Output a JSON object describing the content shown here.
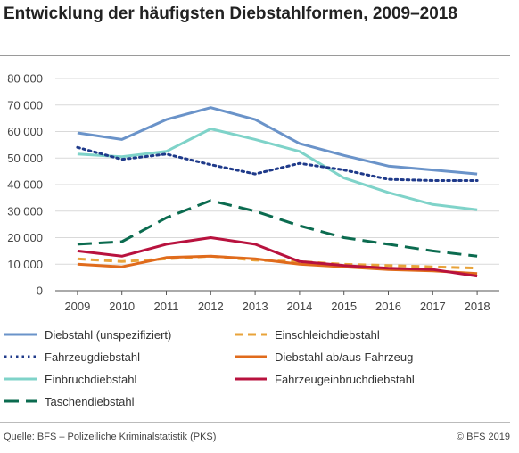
{
  "title": "Entwicklung der häufigsten Diebstahlformen, 2009–2018",
  "source": "Quelle: BFS – Polizeiliche Kriminalstatistik (PKS)",
  "copyright": "© BFS 2019",
  "chart_data": {
    "type": "line",
    "title": "Entwicklung der häufigsten Diebstahlformen, 2009–2018",
    "xlabel": "",
    "ylabel": "",
    "ylim": [
      0,
      80000
    ],
    "yticks": [
      0,
      10000,
      20000,
      30000,
      40000,
      50000,
      60000,
      70000,
      80000
    ],
    "ytick_labels": [
      "0",
      "10 000",
      "20 000",
      "30 000",
      "40 000",
      "50 000",
      "60 000",
      "70 000",
      "80 000"
    ],
    "grid": true,
    "legend_position": "bottom",
    "x": [
      "2009",
      "2010",
      "2011",
      "2012",
      "2013",
      "2014",
      "2015",
      "2016",
      "2017",
      "2018"
    ],
    "series": [
      {
        "name": "Diebstahl (unspezifiziert)",
        "color": "#6a93c9",
        "dash": "solid",
        "values": [
          59500,
          57000,
          64500,
          69000,
          64500,
          55500,
          51000,
          47000,
          45500,
          44000
        ]
      },
      {
        "name": "Fahrzeugdiebstahl",
        "color": "#1f3a8a",
        "dash": "dotted",
        "values": [
          54000,
          49500,
          51500,
          47500,
          44000,
          48000,
          45500,
          42000,
          41500,
          41500
        ]
      },
      {
        "name": "Einbruchdiebstahl",
        "color": "#7fd3c9",
        "dash": "solid",
        "values": [
          51500,
          50500,
          52500,
          61000,
          57000,
          52500,
          42500,
          37000,
          32500,
          30500
        ]
      },
      {
        "name": "Taschendiebstahl",
        "color": "#0b6b4f",
        "dash": "longdash",
        "values": [
          17500,
          18500,
          27500,
          34000,
          30000,
          24500,
          20000,
          17500,
          15000,
          13000
        ]
      },
      {
        "name": "Einschleichdiebstahl",
        "color": "#e8a33a",
        "dash": "dashed",
        "values": [
          12000,
          11000,
          12000,
          13000,
          11500,
          11000,
          10000,
          9500,
          9000,
          8500
        ]
      },
      {
        "name": "Diebstahl ab/aus Fahrzeug",
        "color": "#e06b1c",
        "dash": "solid",
        "values": [
          10000,
          9000,
          12500,
          13000,
          12000,
          10000,
          9000,
          8000,
          7500,
          6500
        ]
      },
      {
        "name": "Fahrzeugeinbruchdiebstahl",
        "color": "#b8123e",
        "dash": "solid",
        "values": [
          15000,
          13000,
          17500,
          20000,
          17500,
          11000,
          9500,
          8500,
          8000,
          5500
        ]
      }
    ]
  }
}
